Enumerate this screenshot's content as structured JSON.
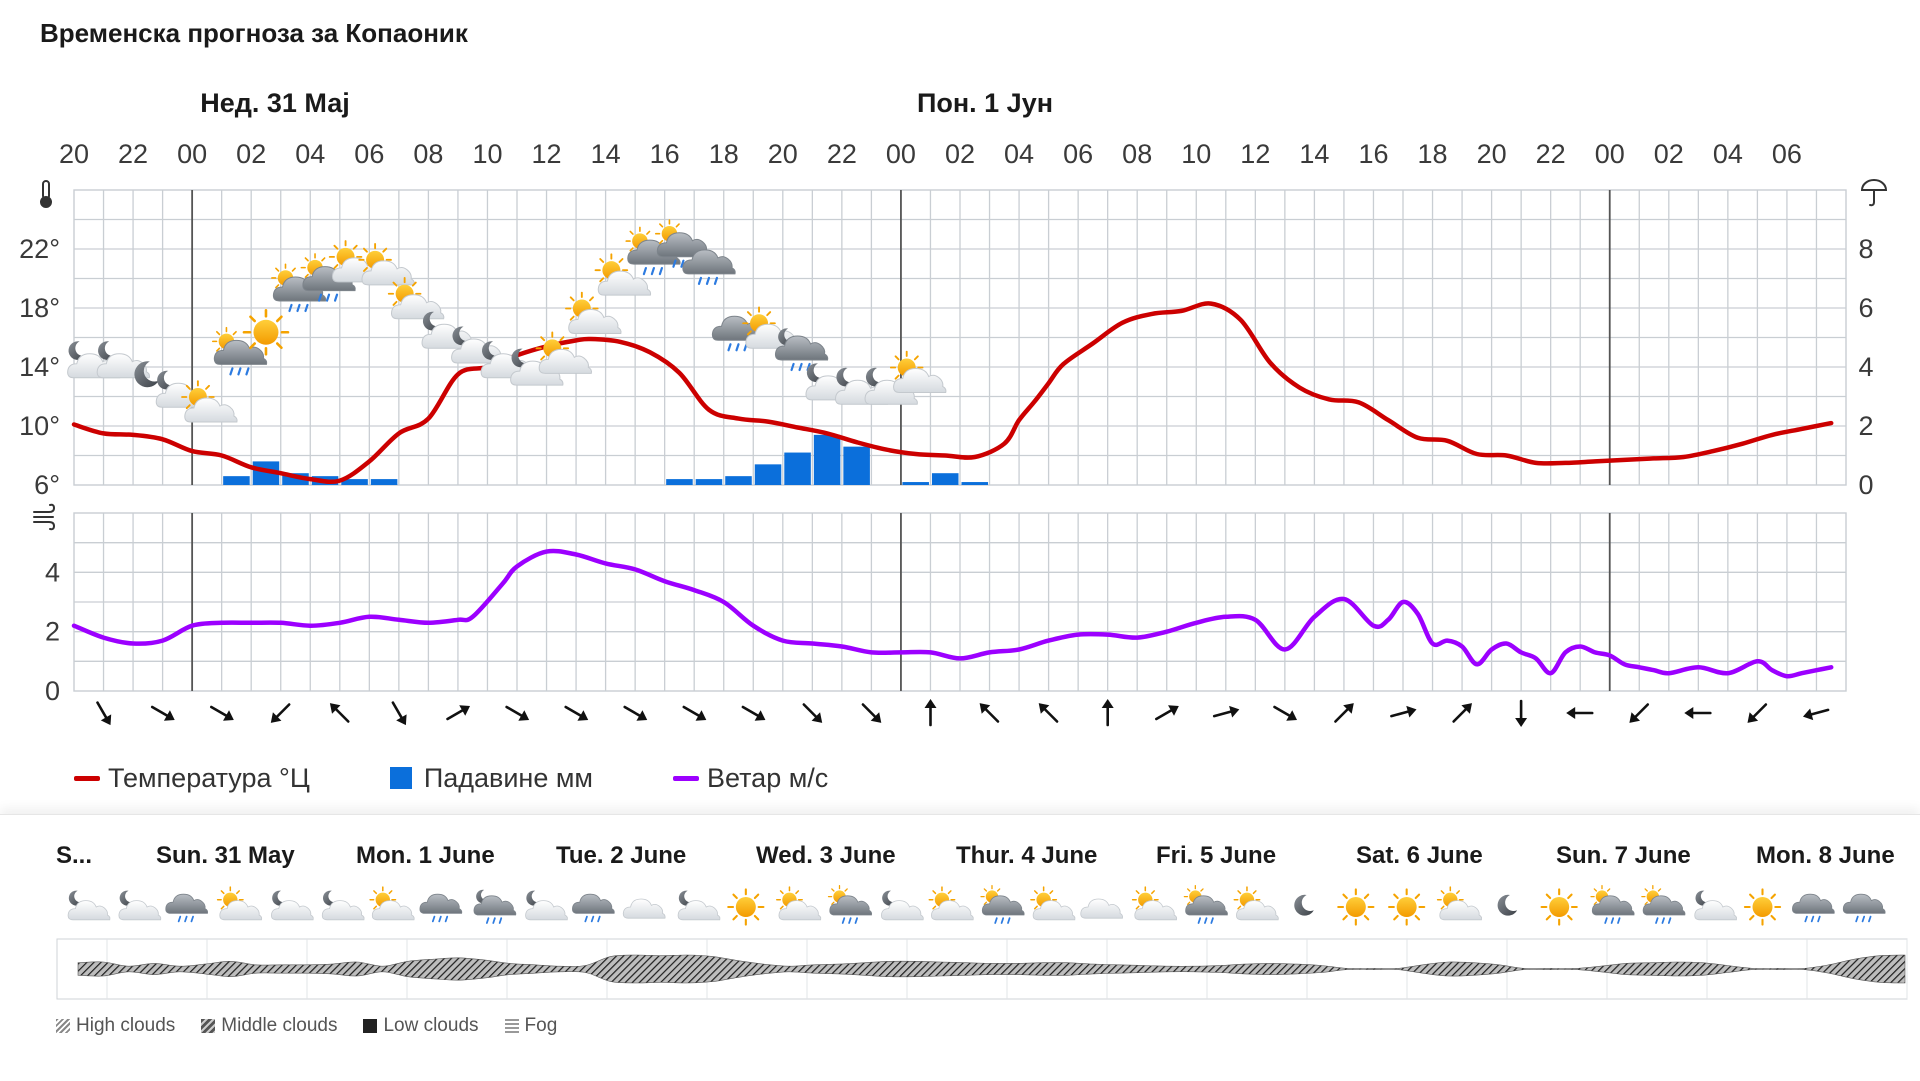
{
  "title": "Временска прогноза за Копаоник",
  "day_labels": [
    "Нед. 31 Мај",
    "Пон. 1 Јун"
  ],
  "icons": {
    "temperature": "thermometer-icon",
    "precipitation": "umbrella-icon",
    "wind": "wind-icon"
  },
  "colors": {
    "temperature": "#cc0000",
    "precipitation": "#0b6fdb",
    "wind": "#9c00ff",
    "grid": "#c9ced3",
    "day_divider": "#555555"
  },
  "legend": {
    "temperature": "Температура °Ц",
    "precipitation": "Падавине мм",
    "wind": "Ветар м/с"
  },
  "chart_data": [
    {
      "type": "line+bar",
      "hour_labels": [
        "20",
        "22",
        "00",
        "02",
        "04",
        "06",
        "08",
        "10",
        "12",
        "14",
        "16",
        "18",
        "20",
        "22",
        "00",
        "02",
        "04",
        "06",
        "08",
        "10",
        "12",
        "14",
        "16",
        "18",
        "20",
        "22",
        "00",
        "02",
        "04",
        "06"
      ],
      "temperature": {
        "unit": "°",
        "ytick_labels": [
          "6°",
          "10°",
          "14°",
          "18°",
          "22°"
        ],
        "ylim": [
          6,
          26
        ],
        "x": [
          0,
          2,
          4,
          6,
          8,
          10,
          12,
          14,
          16,
          18,
          20,
          22,
          24,
          26,
          28,
          30,
          32,
          34,
          35,
          37,
          39,
          41,
          43,
          45,
          47,
          49,
          51,
          53,
          55,
          57,
          59,
          61,
          63,
          64,
          65,
          66,
          67,
          69,
          71,
          73,
          75,
          77,
          79,
          81,
          83,
          85,
          87,
          89,
          91,
          93,
          95,
          97,
          99,
          101,
          103,
          105,
          107,
          109,
          111,
          113,
          115,
          117,
          119
        ],
        "values": [
          10.1,
          9.5,
          9.4,
          9.1,
          8.3,
          8.0,
          7.2,
          6.8,
          6.4,
          6.3,
          7.6,
          9.5,
          10.5,
          13.5,
          14.0,
          14.8,
          15.4,
          15.8,
          15.9,
          15.7,
          15.0,
          13.6,
          11.1,
          10.5,
          10.3,
          9.9,
          9.5,
          8.9,
          8.4,
          8.1,
          8.0,
          7.9,
          8.8,
          10.4,
          11.6,
          12.9,
          14.2,
          15.6,
          17.0,
          17.6,
          17.8,
          18.3,
          17.2,
          14.3,
          12.6,
          11.8,
          11.6,
          10.4,
          9.2,
          9.0,
          8.1,
          8.0,
          7.5,
          7.5,
          7.6,
          7.7,
          7.8,
          7.9,
          8.3,
          8.8,
          9.4,
          9.8,
          10.2
        ]
      },
      "precipitation": {
        "unit": "mm",
        "ytick_labels": [
          "0",
          "2",
          "4",
          "6",
          "8"
        ],
        "ylim": [
          0,
          10
        ],
        "bars": [
          {
            "x": 10,
            "value": 0.3
          },
          {
            "x": 12,
            "value": 0.8
          },
          {
            "x": 14,
            "value": 0.4
          },
          {
            "x": 16,
            "value": 0.3
          },
          {
            "x": 18,
            "value": 0.2
          },
          {
            "x": 20,
            "value": 0.2
          },
          {
            "x": 40,
            "value": 0.2
          },
          {
            "x": 42,
            "value": 0.2
          },
          {
            "x": 44,
            "value": 0.3
          },
          {
            "x": 46,
            "value": 0.7
          },
          {
            "x": 48,
            "value": 1.1
          },
          {
            "x": 50,
            "value": 1.7
          },
          {
            "x": 52,
            "value": 1.3
          },
          {
            "x": 56,
            "value": 0.1
          },
          {
            "x": 58,
            "value": 0.4
          },
          {
            "x": 60,
            "value": 0.1
          }
        ]
      },
      "weather_icons": [
        {
          "x": 1,
          "temp": 13.0,
          "icon": "partly-cloudy-night-icon"
        },
        {
          "x": 3,
          "temp": 13.0,
          "icon": "partly-cloudy-night-icon"
        },
        {
          "x": 5,
          "temp": 12.0,
          "icon": "moon-icon"
        },
        {
          "x": 7,
          "temp": 11.0,
          "icon": "partly-cloudy-night-icon"
        },
        {
          "x": 9,
          "temp": 10.0,
          "icon": "sun-cloud-icon"
        },
        {
          "x": 11,
          "temp": 13.5,
          "icon": "sun-cloud-rain-icon"
        },
        {
          "x": 13,
          "temp": 15.0,
          "icon": "sun-icon"
        },
        {
          "x": 15,
          "temp": 17.8,
          "icon": "sun-cloud-rain-icon"
        },
        {
          "x": 17,
          "temp": 18.5,
          "icon": "sun-cloud-rain-icon"
        },
        {
          "x": 19,
          "temp": 19.5,
          "icon": "sun-cloud-icon"
        },
        {
          "x": 21,
          "temp": 19.3,
          "icon": "sun-cloud-icon"
        },
        {
          "x": 23,
          "temp": 17.0,
          "icon": "sun-cloud-icon"
        },
        {
          "x": 25,
          "temp": 15.0,
          "icon": "partly-cloudy-night-icon"
        },
        {
          "x": 27,
          "temp": 14.0,
          "icon": "partly-cloudy-night-icon"
        },
        {
          "x": 29,
          "temp": 13.0,
          "icon": "partly-cloudy-night-icon"
        },
        {
          "x": 31,
          "temp": 12.5,
          "icon": "partly-cloudy-night-icon"
        },
        {
          "x": 33,
          "temp": 13.3,
          "icon": "sun-cloud-icon"
        },
        {
          "x": 35,
          "temp": 16.0,
          "icon": "sun-cloud-icon"
        },
        {
          "x": 37,
          "temp": 18.6,
          "icon": "sun-cloud-icon"
        },
        {
          "x": 39,
          "temp": 20.3,
          "icon": "sun-cloud-rain-icon"
        },
        {
          "x": 41,
          "temp": 20.8,
          "icon": "sun-cloud-rain-icon"
        },
        {
          "x": 43,
          "temp": 19.5,
          "icon": "cloud-rain-icon"
        },
        {
          "x": 45,
          "temp": 15.0,
          "icon": "cloud-rain-icon"
        },
        {
          "x": 47,
          "temp": 15.0,
          "icon": "sun-cloud-icon"
        },
        {
          "x": 49,
          "temp": 13.8,
          "icon": "partly-cloudy-night-rain-icon"
        },
        {
          "x": 51,
          "temp": 11.5,
          "icon": "partly-cloudy-night-icon"
        },
        {
          "x": 53,
          "temp": 11.2,
          "icon": "partly-cloudy-night-icon"
        },
        {
          "x": 55,
          "temp": 11.2,
          "icon": "partly-cloudy-night-icon"
        },
        {
          "x": 57,
          "temp": 12.0,
          "icon": "sun-cloud-icon"
        }
      ]
    },
    {
      "type": "line",
      "unit": "m/s",
      "ytick_labels": [
        "0",
        "2",
        "4"
      ],
      "ylim": [
        0,
        6
      ],
      "x": [
        0,
        2,
        4,
        6,
        8,
        10,
        12,
        14,
        16,
        18,
        20,
        22,
        24,
        26,
        27,
        29,
        30,
        32,
        34,
        36,
        38,
        40,
        42,
        44,
        46,
        48,
        50,
        52,
        54,
        56,
        58,
        60,
        62,
        64,
        66,
        68,
        70,
        72,
        74,
        76,
        78,
        80,
        82,
        84,
        86,
        88,
        89,
        90,
        91,
        92,
        93,
        94,
        95,
        96,
        97,
        98,
        99,
        100,
        101,
        102,
        103,
        104,
        105,
        106,
        107,
        108,
        110,
        112,
        114,
        115,
        116,
        117,
        118,
        119
      ],
      "values": [
        2.2,
        1.8,
        1.6,
        1.7,
        2.2,
        2.3,
        2.3,
        2.3,
        2.2,
        2.3,
        2.5,
        2.4,
        2.3,
        2.4,
        2.5,
        3.6,
        4.2,
        4.7,
        4.6,
        4.3,
        4.1,
        3.7,
        3.4,
        3.0,
        2.2,
        1.7,
        1.6,
        1.5,
        1.3,
        1.3,
        1.3,
        1.1,
        1.3,
        1.4,
        1.7,
        1.9,
        1.9,
        1.8,
        2.0,
        2.3,
        2.5,
        2.4,
        1.4,
        2.5,
        3.1,
        2.2,
        2.4,
        3.0,
        2.6,
        1.6,
        1.7,
        1.5,
        0.9,
        1.4,
        1.6,
        1.3,
        1.1,
        0.6,
        1.3,
        1.5,
        1.3,
        1.2,
        0.9,
        0.8,
        0.7,
        0.6,
        0.8,
        0.6,
        1.0,
        0.7,
        0.5,
        0.6,
        0.7,
        0.8
      ],
      "direction_arrows_deg": [
        150,
        120,
        120,
        225,
        315,
        150,
        60,
        120,
        120,
        120,
        120,
        120,
        135,
        135,
        0,
        315,
        315,
        0,
        60,
        75,
        120,
        45,
        75,
        45,
        180,
        270,
        225,
        270,
        225,
        255
      ]
    }
  ],
  "weekly": {
    "days": [
      "S...",
      "Sun. 31 May",
      "Mon. 1 June",
      "Tue. 2 June",
      "Wed. 3 June",
      "Thur. 4 June",
      "Fri. 5 June",
      "Sat. 6 June",
      "Sun. 7 June",
      "Mon. 8 June"
    ],
    "icons": [
      "partly-cloudy-night-icon",
      "partly-cloudy-night-icon",
      "cloud-rain-icon",
      "sun-cloud-icon",
      "partly-cloudy-night-icon",
      "partly-cloudy-night-icon",
      "sun-cloud-icon",
      "cloud-rain-icon",
      "partly-cloudy-night-rain-icon",
      "partly-cloudy-night-icon",
      "cloud-rain-icon",
      "cloud-icon",
      "partly-cloudy-night-icon",
      "sun-icon",
      "sun-cloud-icon",
      "sun-cloud-rain-icon",
      "partly-cloudy-night-icon",
      "sun-cloud-icon",
      "sun-cloud-rain-icon",
      "sun-cloud-icon",
      "cloud-icon",
      "sun-cloud-icon",
      "sun-cloud-rain-icon",
      "sun-cloud-icon",
      "moon-icon",
      "sun-icon",
      "sun-icon",
      "sun-cloud-icon",
      "moon-icon",
      "sun-icon",
      "sun-cloud-rain-icon",
      "sun-cloud-rain-icon",
      "partly-cloudy-night-icon",
      "sun-icon",
      "cloud-rain-icon",
      "cloud-rain-icon"
    ],
    "cloud_layers": {
      "x": [
        0,
        1,
        2,
        3,
        4,
        5,
        6,
        7,
        8,
        9,
        10,
        11,
        12,
        13,
        14,
        15,
        16,
        17,
        18,
        19,
        20,
        21,
        22,
        23,
        24,
        25,
        26,
        27,
        28,
        29,
        30,
        31,
        32,
        33,
        34,
        35,
        36,
        37,
        38,
        39,
        40,
        41,
        42,
        43,
        44,
        45,
        46,
        47,
        48,
        49,
        50,
        51,
        52,
        53,
        54,
        55,
        56,
        57,
        58,
        59,
        60,
        61,
        62,
        63,
        64,
        65,
        66,
        67,
        68,
        69,
        70,
        71,
        72
      ],
      "values": [
        0.45,
        0.5,
        0.2,
        0.4,
        0.2,
        0.35,
        0.55,
        0.3,
        0.3,
        0.3,
        0.35,
        0.5,
        0.2,
        0.55,
        0.7,
        0.8,
        0.65,
        0.4,
        0.3,
        0.2,
        0.25,
        0.9,
        1.0,
        0.95,
        1.0,
        0.9,
        0.6,
        0.35,
        0.2,
        0.3,
        0.35,
        0.45,
        0.55,
        0.55,
        0.5,
        0.45,
        0.4,
        0.4,
        0.45,
        0.45,
        0.35,
        0.3,
        0.25,
        0.2,
        0.2,
        0.25,
        0.35,
        0.4,
        0.35,
        0.25,
        0.0,
        0.0,
        0.0,
        0.3,
        0.5,
        0.45,
        0.3,
        0.0,
        0.0,
        0.0,
        0.2,
        0.4,
        0.45,
        0.5,
        0.45,
        0.25,
        0.0,
        0.0,
        0.0,
        0.3,
        0.7,
        0.95,
        1.0
      ]
    },
    "legend": [
      "High clouds",
      "Middle clouds",
      "Low clouds",
      "Fog"
    ]
  }
}
